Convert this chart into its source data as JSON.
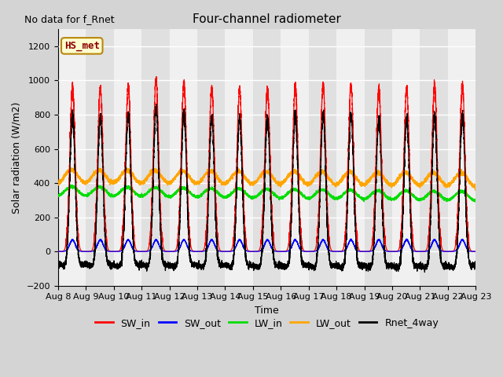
{
  "title": "Four-channel radiometer",
  "no_data_text": "No data for f_Rnet",
  "ylabel": "Solar radiation (W/m2)",
  "xlabel": "Time",
  "ylim": [
    -200,
    1300
  ],
  "yticks": [
    -200,
    0,
    200,
    400,
    600,
    800,
    1000,
    1200
  ],
  "n_days": 15,
  "start_day": 8,
  "fig_bg": "#d4d4d4",
  "plot_bg": "#e8e8e8",
  "band_light": "#f0f0f0",
  "band_dark": "#e0e0e0",
  "legend_label": "HS_met",
  "legend_bg": "#ffffd0",
  "legend_border": "#b8860b",
  "colors": {
    "SW_in": "#ff0000",
    "SW_out": "#0000ff",
    "LW_in": "#00dd00",
    "LW_out": "#ffa500",
    "Rnet_4way": "#000000"
  },
  "series_labels": [
    "SW_in",
    "SW_out",
    "LW_in",
    "LW_out",
    "Rnet_4way"
  ]
}
